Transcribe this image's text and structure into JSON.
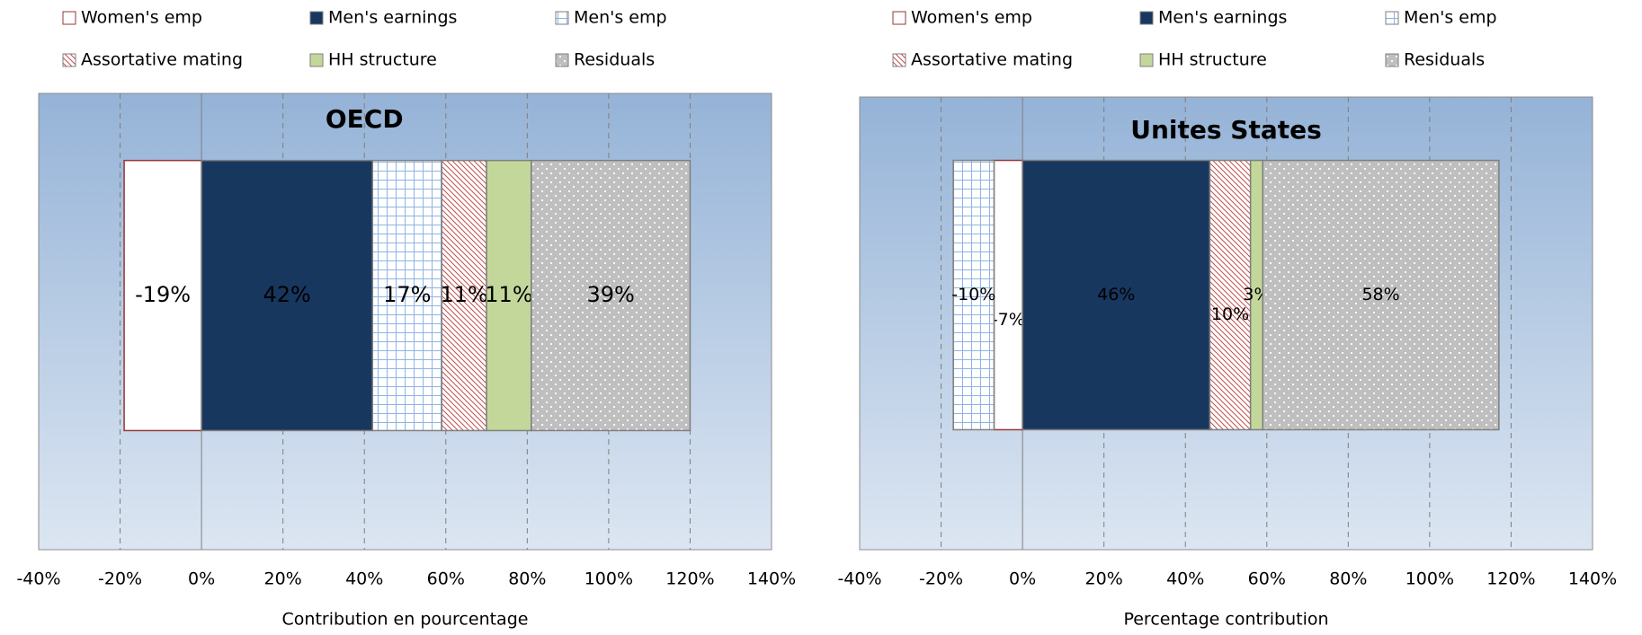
{
  "chart_data": [
    {
      "type": "bar",
      "orientation": "horizontal",
      "stacked": true,
      "title": "OECD",
      "x_label": "Contribution en pourcentage",
      "series": [
        {
          "name": "Women's emp",
          "color": "#ffffff",
          "values": [
            -19
          ],
          "value_labels": [
            "-19%"
          ]
        },
        {
          "name": "Men's earnings",
          "color": "#17375e",
          "values": [
            42
          ],
          "value_labels": [
            "42%"
          ]
        },
        {
          "name": "Men's emp",
          "color": "#ffffff",
          "values": [
            17
          ],
          "value_labels": [
            "17%"
          ]
        },
        {
          "name": "Assortative mating",
          "color": "#ffffff",
          "values": [
            11
          ],
          "value_labels": [
            "11%"
          ]
        },
        {
          "name": "HH structure",
          "color": "#c4d79b",
          "values": [
            11
          ],
          "value_labels": [
            "11%"
          ]
        },
        {
          "name": "Residuals",
          "color": "#bfbfbf",
          "values": [
            39
          ],
          "value_labels": [
            "39%"
          ]
        }
      ],
      "xlim": [
        -40,
        140
      ],
      "xticks": [
        {
          "value": -40,
          "label": "-40%"
        },
        {
          "value": -20,
          "label": "-20%"
        },
        {
          "value": 0,
          "label": "0%"
        },
        {
          "value": 20,
          "label": "20%"
        },
        {
          "value": 40,
          "label": "40%"
        },
        {
          "value": 60,
          "label": "60%"
        },
        {
          "value": 80,
          "label": "80%"
        },
        {
          "value": 100,
          "label": "100%"
        },
        {
          "value": 120,
          "label": "120%"
        },
        {
          "value": 140,
          "label": "140%"
        }
      ],
      "grid": true,
      "legend": "top"
    },
    {
      "type": "bar",
      "orientation": "horizontal",
      "stacked": true,
      "title": "Unites States",
      "x_label": "Percentage contribution",
      "series": [
        {
          "name": "Women's emp",
          "color": "#ffffff",
          "values": [
            -7
          ],
          "value_labels": [
            "-7%"
          ]
        },
        {
          "name": "Men's earnings",
          "color": "#17375e",
          "values": [
            46
          ],
          "value_labels": [
            "46%"
          ]
        },
        {
          "name": "Men's emp",
          "color": "#ffffff",
          "values": [
            -10
          ],
          "value_labels": [
            "-10%"
          ]
        },
        {
          "name": "Assortative mating",
          "color": "#ffffff",
          "values": [
            10
          ],
          "value_labels": [
            "10%"
          ]
        },
        {
          "name": "HH structure",
          "color": "#c4d79b",
          "values": [
            3
          ],
          "value_labels": [
            "3%"
          ]
        },
        {
          "name": "Residuals",
          "color": "#bfbfbf",
          "values": [
            58
          ],
          "value_labels": [
            "58%"
          ]
        }
      ],
      "xlim": [
        -40,
        140
      ],
      "xticks": [
        {
          "value": -40,
          "label": "-40%"
        },
        {
          "value": -20,
          "label": "-20%"
        },
        {
          "value": 0,
          "label": "0%"
        },
        {
          "value": 20,
          "label": "20%"
        },
        {
          "value": 40,
          "label": "40%"
        },
        {
          "value": 60,
          "label": "60%"
        },
        {
          "value": 80,
          "label": "80%"
        },
        {
          "value": 100,
          "label": "100%"
        },
        {
          "value": 120,
          "label": "120%"
        },
        {
          "value": 140,
          "label": "140%"
        }
      ],
      "grid": true,
      "legend": "top"
    }
  ]
}
